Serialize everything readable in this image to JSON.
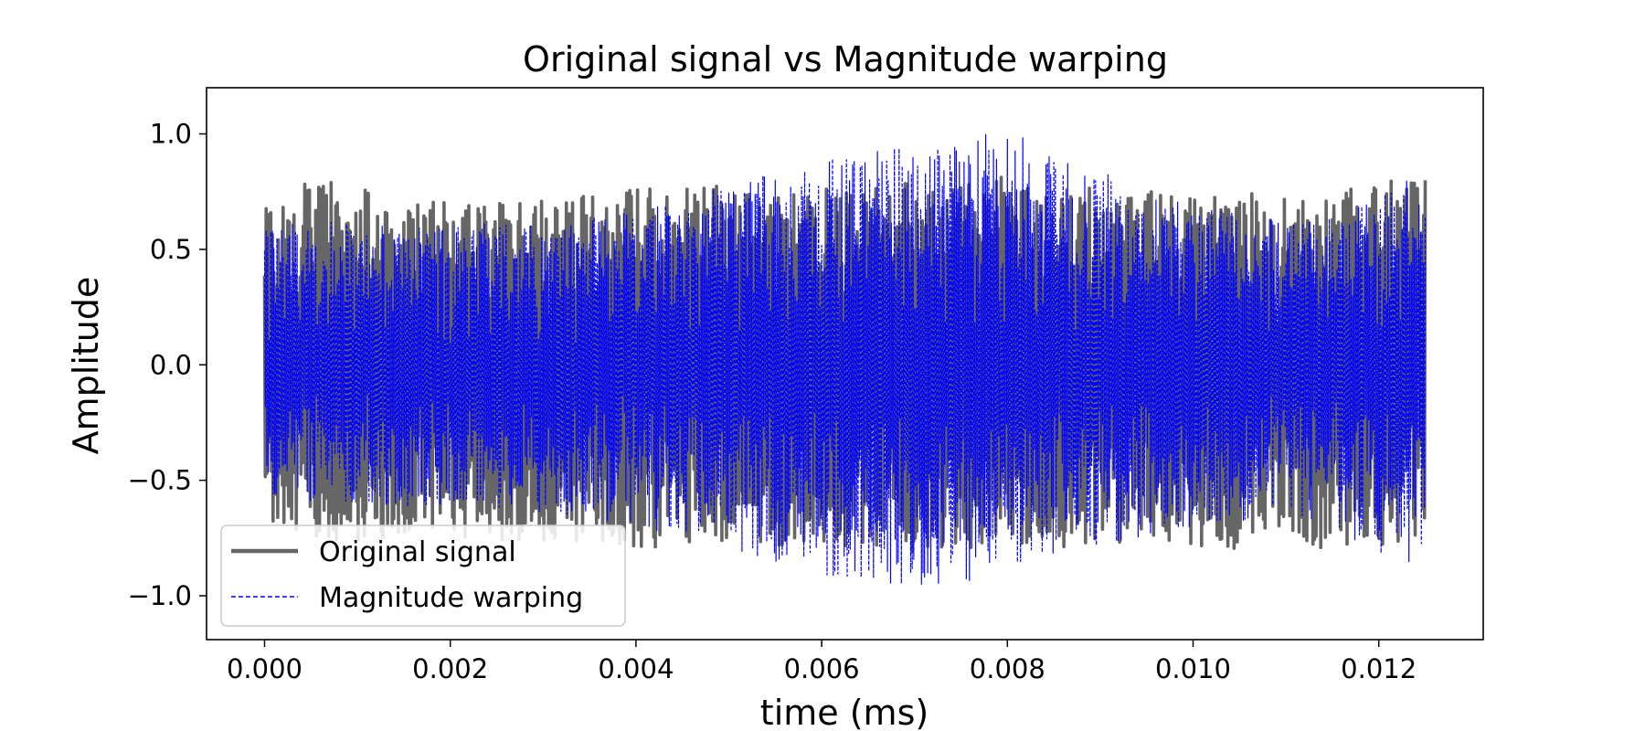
{
  "chart_data": {
    "type": "line",
    "title": "Original signal vs Magnitude warping",
    "xlabel": "time (ms)",
    "ylabel": "Amplitude",
    "xlim": [
      -0.000625,
      0.013125
    ],
    "ylim": [
      -1.19,
      1.2
    ],
    "xticks": [
      0.0,
      0.002,
      0.004,
      0.006,
      0.008,
      0.01,
      0.012
    ],
    "xtick_labels": [
      "0.000",
      "0.002",
      "0.004",
      "0.006",
      "0.008",
      "0.010",
      "0.012"
    ],
    "yticks": [
      -1.0,
      -0.5,
      0.0,
      0.5,
      1.0
    ],
    "ytick_labels": [
      "−1.0",
      "−0.5",
      "0.0",
      "0.5",
      "1.0"
    ],
    "grid": false,
    "legend_position": "lower-left",
    "series": [
      {
        "name": "Original signal",
        "color": "#666666",
        "style": "solid",
        "x": [
          0.0,
          0.0005,
          0.001,
          0.0015,
          0.002,
          0.0025,
          0.003,
          0.0035,
          0.004,
          0.0045,
          0.005,
          0.0055,
          0.006,
          0.0065,
          0.007,
          0.0075,
          0.008,
          0.0085,
          0.009,
          0.0095,
          0.01,
          0.0105,
          0.011,
          0.0115,
          0.012,
          0.0125
        ],
        "upper_envelope": [
          0.68,
          0.8,
          0.78,
          0.72,
          0.7,
          0.74,
          0.72,
          0.75,
          0.8,
          0.76,
          0.78,
          0.74,
          0.76,
          0.78,
          0.8,
          0.78,
          0.82,
          0.76,
          0.78,
          0.76,
          0.74,
          0.77,
          0.72,
          0.74,
          0.8,
          0.8
        ],
        "lower_envelope": [
          -0.7,
          -0.75,
          -0.78,
          -0.76,
          -0.74,
          -0.76,
          -0.78,
          -0.76,
          -0.8,
          -0.78,
          -0.76,
          -0.78,
          -0.8,
          -0.78,
          -0.82,
          -0.8,
          -0.78,
          -0.8,
          -0.78,
          -0.76,
          -0.78,
          -0.8,
          -0.78,
          -0.8,
          -0.8,
          -0.75
        ]
      },
      {
        "name": "Magnitude warping",
        "color": "#0000ff",
        "style": "dashed",
        "x": [
          0.0,
          0.0005,
          0.001,
          0.0015,
          0.002,
          0.0025,
          0.003,
          0.0035,
          0.004,
          0.0045,
          0.005,
          0.0055,
          0.006,
          0.0065,
          0.007,
          0.0075,
          0.008,
          0.0085,
          0.009,
          0.0095,
          0.01,
          0.0105,
          0.011,
          0.0115,
          0.012,
          0.0125
        ],
        "upper_envelope": [
          0.6,
          0.62,
          0.62,
          0.6,
          0.6,
          0.62,
          0.6,
          0.64,
          0.68,
          0.72,
          0.8,
          0.86,
          0.9,
          0.92,
          0.95,
          0.98,
          1.02,
          0.92,
          0.84,
          0.76,
          0.7,
          0.66,
          0.62,
          0.64,
          0.72,
          0.86
        ],
        "lower_envelope": [
          -0.56,
          -0.6,
          -0.6,
          -0.62,
          -0.6,
          -0.62,
          -0.64,
          -0.66,
          -0.7,
          -0.74,
          -0.8,
          -0.86,
          -0.92,
          -0.94,
          -0.96,
          -0.94,
          -0.92,
          -0.86,
          -0.8,
          -0.74,
          -0.7,
          -0.68,
          -0.66,
          -0.72,
          -0.82,
          -0.88
        ]
      }
    ]
  }
}
